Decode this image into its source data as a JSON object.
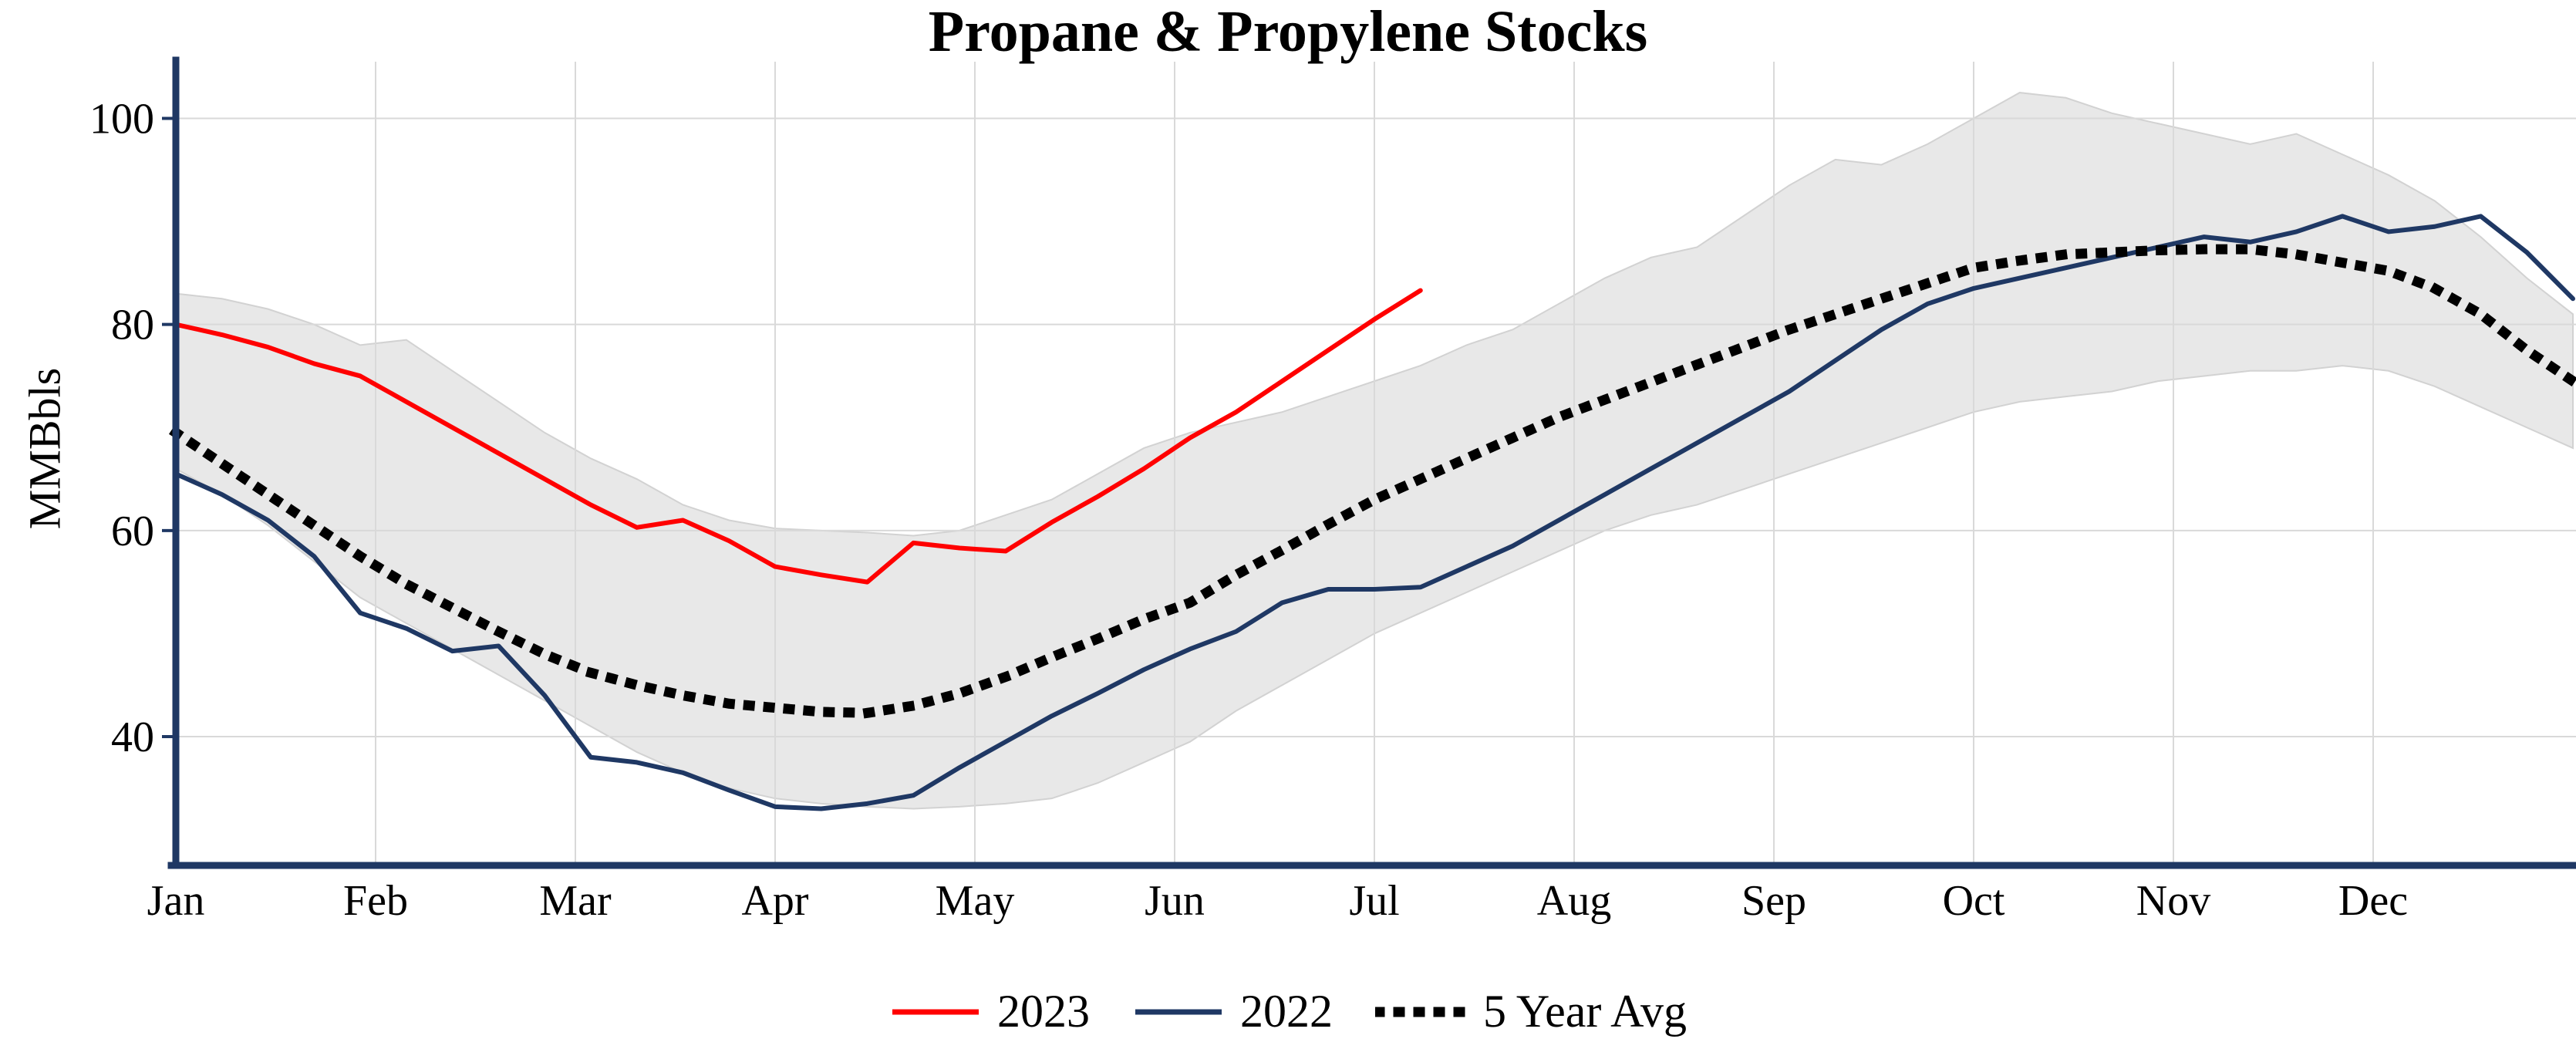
{
  "chart_data": {
    "type": "line",
    "title": "Propane & Propylene Stocks",
    "ylabel": "MMBbls",
    "xlabel": "",
    "categories": [
      "Jan",
      "Feb",
      "Mar",
      "Apr",
      "May",
      "Jun",
      "Jul",
      "Aug",
      "Sep",
      "Oct",
      "Nov",
      "Dec"
    ],
    "yticks": [
      40,
      60,
      80,
      100
    ],
    "ylim": [
      27.5,
      105.5
    ],
    "weeks_per_year": 52,
    "grid": true,
    "legend_position": "bottom",
    "colors": {
      "axis": "#1f3864",
      "grid": "#d9d9d9",
      "band_fill": "#e8e8e8",
      "band_edge": "#d2d2d2",
      "text": "#000000"
    },
    "range_band": {
      "upper": [
        83,
        82.5,
        81.5,
        80,
        78,
        78.5,
        75.5,
        72.5,
        69.5,
        67,
        65,
        62.5,
        61,
        60.2,
        60,
        59.8,
        59.5,
        60,
        61.5,
        63,
        65.5,
        68,
        69.5,
        70.5,
        71.5,
        73,
        74.5,
        76,
        78,
        79.5,
        82,
        84.5,
        86.5,
        87.5,
        90.5,
        93.5,
        96,
        95.5,
        97.5,
        100,
        102.5,
        102,
        100.5,
        99.5,
        98.5,
        97.5,
        98.5,
        96.5,
        94.5,
        92,
        88.5,
        84.5,
        81
      ],
      "lower": [
        66,
        63.5,
        60.5,
        57,
        53.5,
        51,
        48.5,
        46,
        43.5,
        41,
        38.5,
        36.5,
        35,
        34,
        33.5,
        33.2,
        33,
        33.2,
        33.5,
        34,
        35.5,
        37.5,
        39.5,
        42.5,
        45,
        47.5,
        50,
        52,
        54,
        56,
        58,
        60,
        61.5,
        62.5,
        64,
        65.5,
        67,
        68.5,
        70,
        71.5,
        72.5,
        73,
        73.5,
        74.5,
        75,
        75.5,
        75.5,
        76,
        75.5,
        74,
        72,
        70,
        68
      ]
    },
    "series": [
      {
        "name": "2023",
        "style": "solid",
        "color": "#ff0000",
        "values": [
          80,
          79,
          77.8,
          76.2,
          75,
          72.5,
          70,
          67.5,
          65,
          62.5,
          60.3,
          61,
          59,
          56.5,
          55.7,
          55,
          58.8,
          58.3,
          58,
          60.8,
          63.3,
          66,
          69,
          71.5,
          74.5,
          77.5,
          80.5,
          83.3
        ]
      },
      {
        "name": "2022",
        "style": "solid",
        "color": "#1f3864",
        "values": [
          65.5,
          63.5,
          61,
          57.5,
          52,
          50.5,
          48.3,
          48.8,
          44,
          38,
          37.5,
          36.5,
          34.8,
          33.2,
          33,
          33.5,
          34.3,
          37,
          39.5,
          42,
          44.2,
          46.5,
          48.5,
          50.2,
          53,
          54.3,
          54.3,
          54.5,
          56.5,
          58.5,
          61,
          63.5,
          66,
          68.5,
          71,
          73.5,
          76.5,
          79.5,
          82,
          83.5,
          84.5,
          85.5,
          86.5,
          87.5,
          88.5,
          88,
          89,
          90.5,
          89,
          89.5,
          90.5,
          87,
          82.5
        ]
      },
      {
        "name": "5 Year Avg",
        "style": "dotted",
        "color": "#000000",
        "values": [
          69.5,
          66.5,
          63.5,
          60.5,
          57.5,
          54.8,
          52.5,
          50.2,
          48,
          46.2,
          45,
          44,
          43.2,
          42.8,
          42.4,
          42.3,
          43,
          44.2,
          45.8,
          47.7,
          49.5,
          51.4,
          53,
          55.7,
          58.1,
          60.6,
          63,
          65,
          67,
          69,
          71,
          72.7,
          74.4,
          76.1,
          77.8,
          79.5,
          81,
          82.5,
          84,
          85.5,
          86.2,
          86.8,
          87,
          87.2,
          87.3,
          87.3,
          86.8,
          86,
          85.2,
          83.5,
          81,
          77.5,
          74.5
        ]
      }
    ]
  }
}
